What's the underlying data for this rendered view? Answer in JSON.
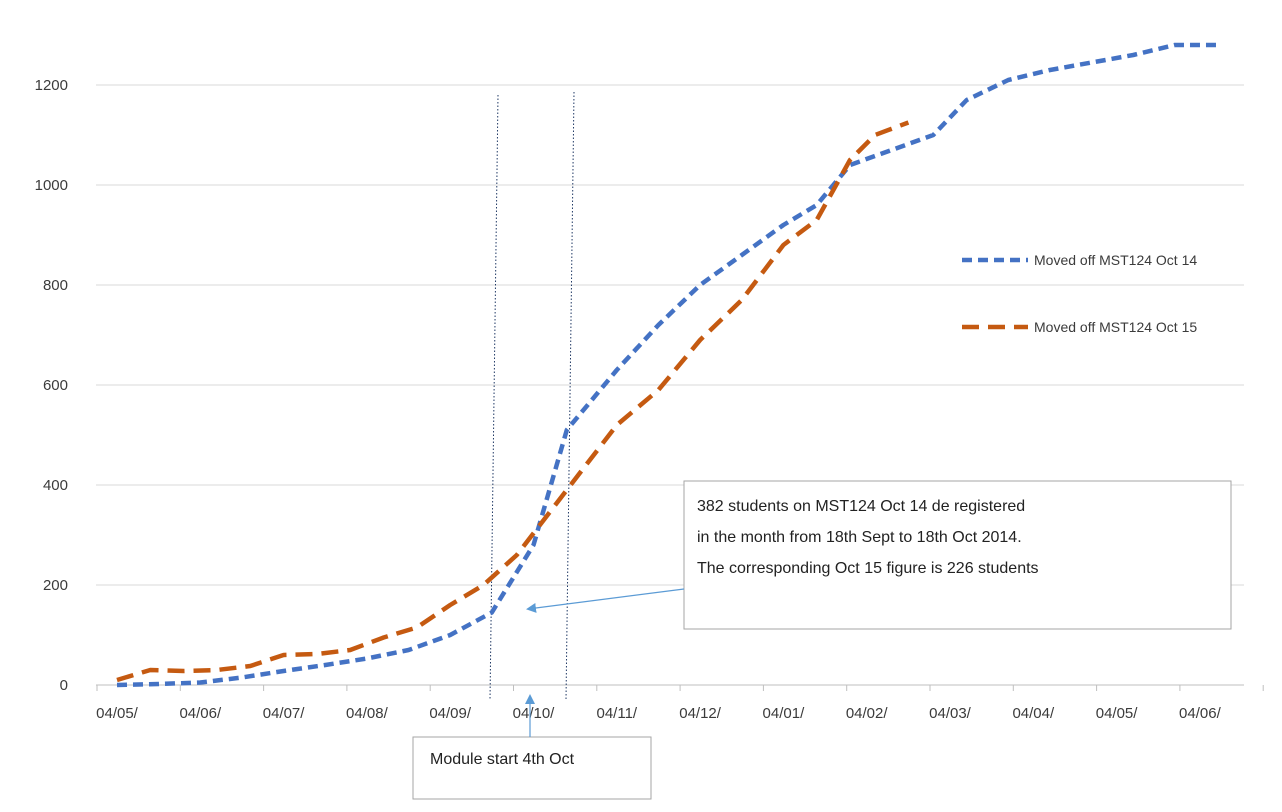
{
  "chart_data": {
    "type": "line",
    "title": "",
    "xlabel": "",
    "ylabel": "",
    "ylim": [
      0,
      1200
    ],
    "yticks": [
      0,
      200,
      400,
      600,
      800,
      1000,
      1200
    ],
    "categories": [
      "04/05/",
      "04/06/",
      "04/07/",
      "04/08/",
      "04/09/",
      "04/10/",
      "04/11/",
      "04/12/",
      "04/01/",
      "04/02/",
      "04/03/",
      "04/04/",
      "04/05/",
      "04/06/"
    ],
    "grid": true,
    "legend": "right",
    "series": [
      {
        "name": "Moved off MST124  Oct 14",
        "color": "#4472c4",
        "style": "dashed",
        "points": [
          [
            0,
            0
          ],
          [
            0.5,
            2
          ],
          [
            1,
            5
          ],
          [
            1.5,
            15
          ],
          [
            2,
            28
          ],
          [
            2.5,
            40
          ],
          [
            3,
            53
          ],
          [
            3.5,
            70
          ],
          [
            4,
            100
          ],
          [
            4.5,
            145
          ],
          [
            5,
            280
          ],
          [
            5.4,
            510
          ],
          [
            6,
            630
          ],
          [
            6.5,
            720
          ],
          [
            7,
            800
          ],
          [
            7.5,
            860
          ],
          [
            8,
            920
          ],
          [
            8.4,
            960
          ],
          [
            8.8,
            1040
          ],
          [
            9.3,
            1070
          ],
          [
            9.8,
            1100
          ],
          [
            10.2,
            1170
          ],
          [
            10.7,
            1210
          ],
          [
            11.2,
            1230
          ],
          [
            11.7,
            1245
          ],
          [
            12.2,
            1260
          ],
          [
            12.7,
            1280
          ],
          [
            13.2,
            1280
          ]
        ]
      },
      {
        "name": "Moved off MST124  Oct 15",
        "color": "#c55a11",
        "style": "long-dashed",
        "points": [
          [
            0,
            10
          ],
          [
            0.4,
            30
          ],
          [
            0.8,
            28
          ],
          [
            1.2,
            30
          ],
          [
            1.6,
            38
          ],
          [
            2,
            60
          ],
          [
            2.4,
            62
          ],
          [
            2.8,
            70
          ],
          [
            3.2,
            95
          ],
          [
            3.6,
            115
          ],
          [
            4,
            160
          ],
          [
            4.4,
            200
          ],
          [
            4.8,
            260
          ],
          [
            5.4,
            390
          ],
          [
            6,
            520
          ],
          [
            6.5,
            590
          ],
          [
            7,
            690
          ],
          [
            7.5,
            770
          ],
          [
            8,
            880
          ],
          [
            8.4,
            930
          ],
          [
            8.8,
            1050
          ],
          [
            9.1,
            1100
          ],
          [
            9.5,
            1125
          ]
        ]
      }
    ],
    "annotations": [
      {
        "text_lines": [
          "382 students  on MST124  Oct 14 de registered",
          "in the month  from 18th Sept to 18th Oct 2014.",
          "The corresponding Oct 15 figure is 226 students"
        ]
      },
      {
        "text": "Module start 4th Oct"
      }
    ]
  }
}
